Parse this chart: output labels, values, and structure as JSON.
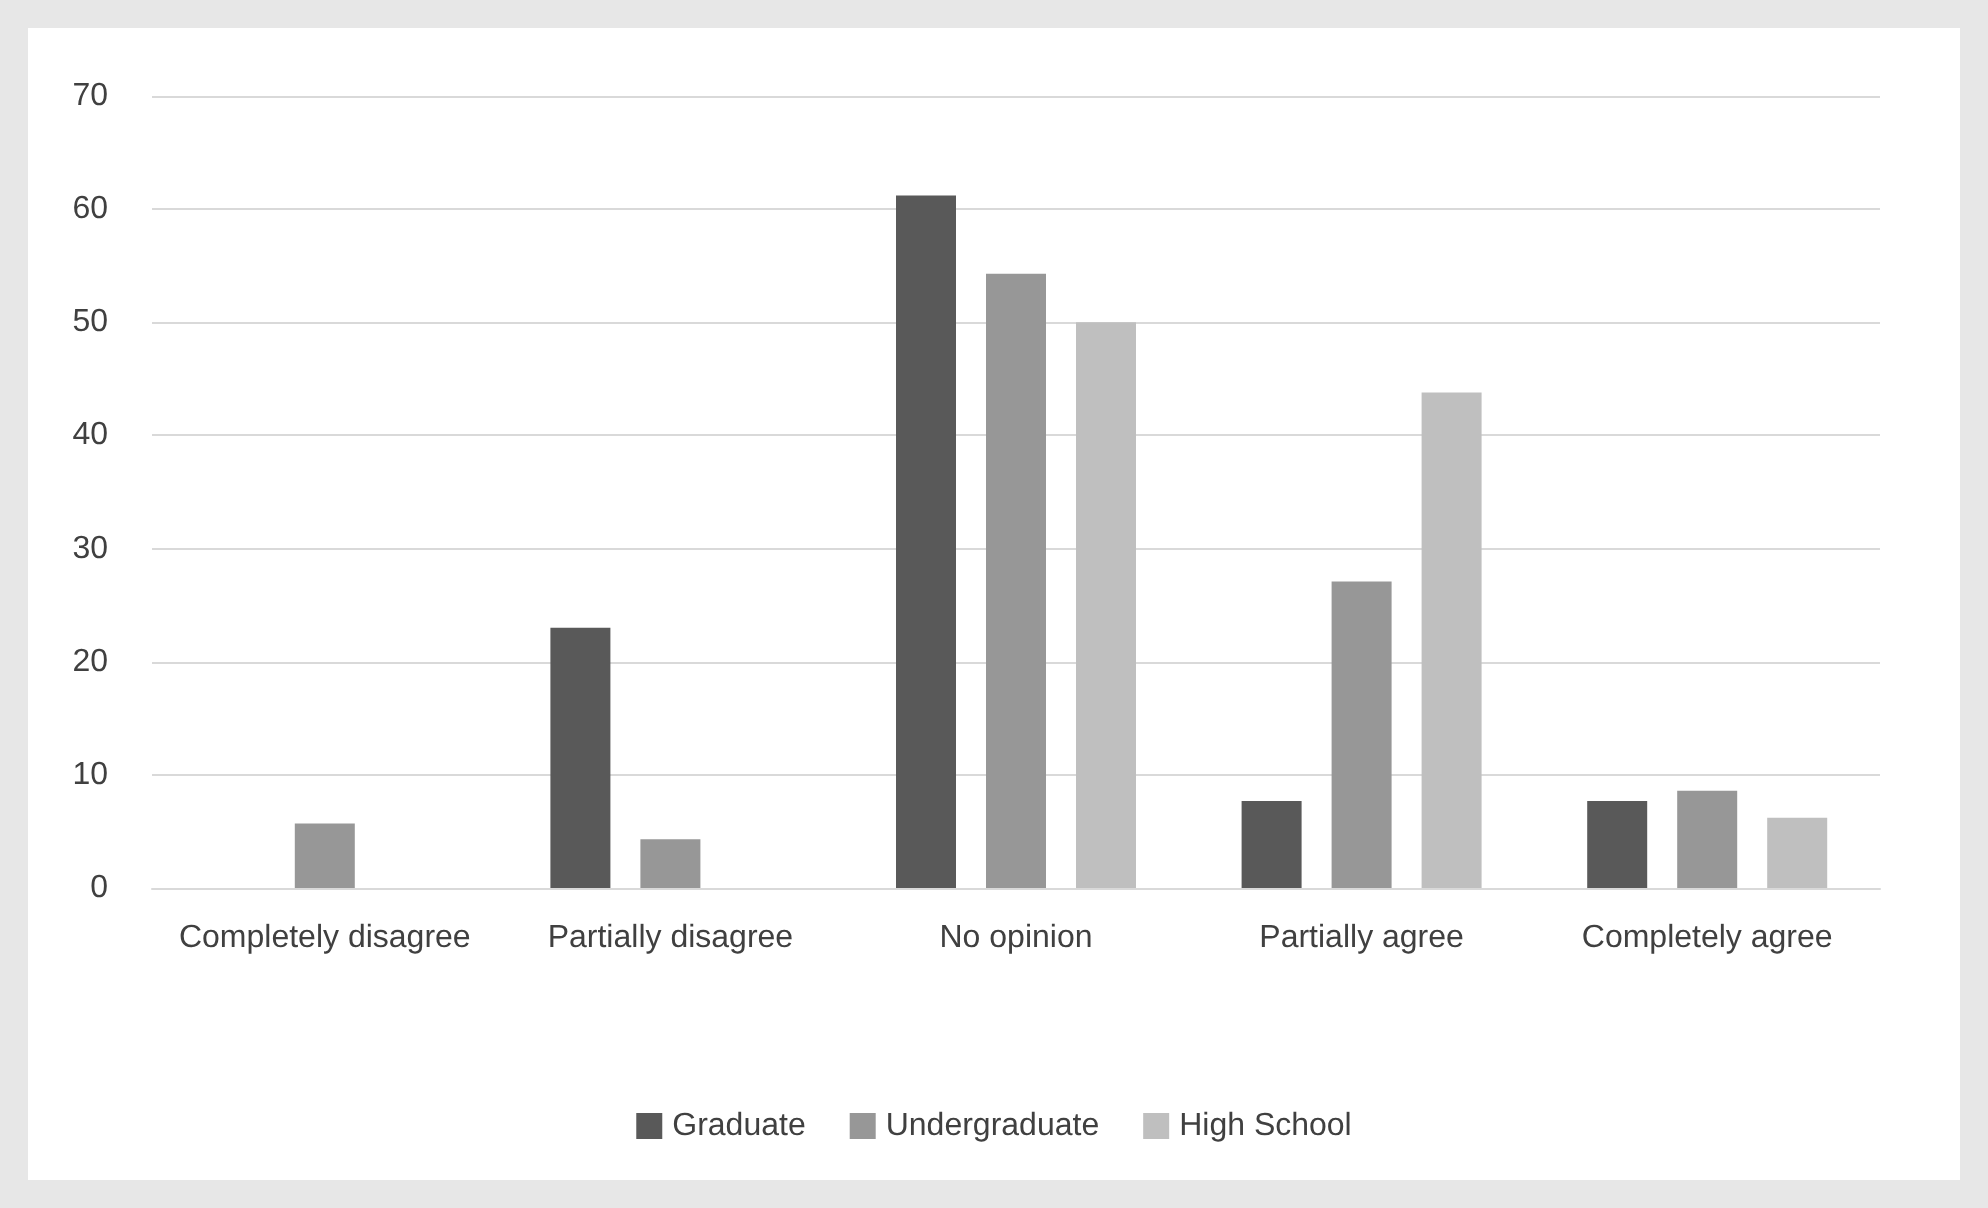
{
  "chart_data": {
    "type": "bar",
    "categories": [
      "Completely disagree",
      "Partially disagree",
      "No opinion",
      "Partially agree",
      "Completely agree"
    ],
    "series": [
      {
        "name": "Graduate",
        "color": "#595959",
        "values": [
          0,
          23,
          61.2,
          7.7,
          7.7
        ]
      },
      {
        "name": "Undergraduate",
        "color": "#979797",
        "values": [
          5.7,
          4.3,
          54.3,
          27.1,
          8.6
        ]
      },
      {
        "name": "High School",
        "color": "#bfbfbf",
        "values": [
          0,
          0,
          50,
          43.8,
          6.2
        ]
      }
    ],
    "ylim": [
      0,
      70
    ],
    "yticks": [
      0,
      10,
      20,
      30,
      40,
      50,
      60,
      70
    ],
    "grid": "y",
    "legend": "bottom"
  }
}
